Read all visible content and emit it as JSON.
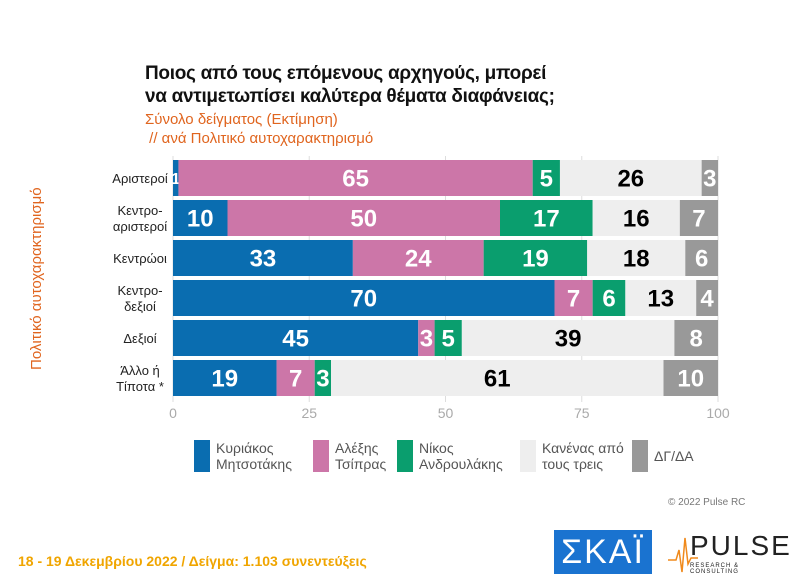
{
  "chart_data": {
    "type": "bar",
    "orientation": "horizontal",
    "stacked": true,
    "title": "Ποιος από τους επόμενους αρχηγούς, μπορεί να αντιμετωπίσει καλύτερα θέματα διαφάνειας;",
    "title_lines": [
      "Ποιος από τους επόμενους αρχηγούς, μπορεί",
      "να αντιμετωπίσει καλύτερα θέματα διαφάνειας;"
    ],
    "subtitle_lines": [
      "Σύνολο δείγματος  (Εκτίμηση)",
      " // ανά Πολιτικό αυτοχαρακτηρισμό"
    ],
    "ylabel": "Πολιτικό αυτοχαρακτηρισμό",
    "categories": [
      [
        "Αριστεροί"
      ],
      [
        "Κεντρο-",
        "αριστεροί"
      ],
      [
        "Κεντρώοι"
      ],
      [
        "Κεντρο-",
        "δεξιοί"
      ],
      [
        "Δεξιοί"
      ],
      [
        "Άλλο ή",
        "Τίποτα *"
      ]
    ],
    "xlim": [
      0,
      100
    ],
    "xticks": [
      "0",
      "25",
      "50",
      "75",
      "100"
    ],
    "legend_position": "bottom",
    "series": [
      {
        "name": "Κυριάκος\nΜητσοτάκης",
        "color": "#0a6db0",
        "label_color": "#ffffff",
        "values": [
          1,
          10,
          33,
          70,
          45,
          19
        ]
      },
      {
        "name": "Αλέξης\nΤσίπρας",
        "color": "#cc76a8",
        "label_color": "#ffffff",
        "values": [
          65,
          50,
          24,
          7,
          3,
          7
        ]
      },
      {
        "name": "Νίκος\nΑνδρουλάκης",
        "color": "#0a9e6e",
        "label_color": "#ffffff",
        "values": [
          5,
          17,
          19,
          6,
          5,
          3
        ]
      },
      {
        "name": "Κανένας από\nτους τρεις",
        "color": "#eeeeee",
        "label_color": "#000000",
        "values": [
          26,
          16,
          18,
          13,
          39,
          61
        ]
      },
      {
        "name": "ΔΓ/ΔΑ",
        "color": "#999999",
        "label_color": "#ffffff",
        "values": [
          3,
          7,
          6,
          4,
          8,
          10
        ]
      }
    ]
  },
  "footer": {
    "copyright": "© 2022 Pulse RC",
    "dates": "18 - 19  Δεκεμβρίου  2022  /  Δείγμα:  1.103 συνεντεύξεις",
    "logo_skai": "ΣΚΑΪ",
    "logo_pulse": "PULSE",
    "logo_pulse_sub": "RESEARCH & CONSULTING"
  }
}
